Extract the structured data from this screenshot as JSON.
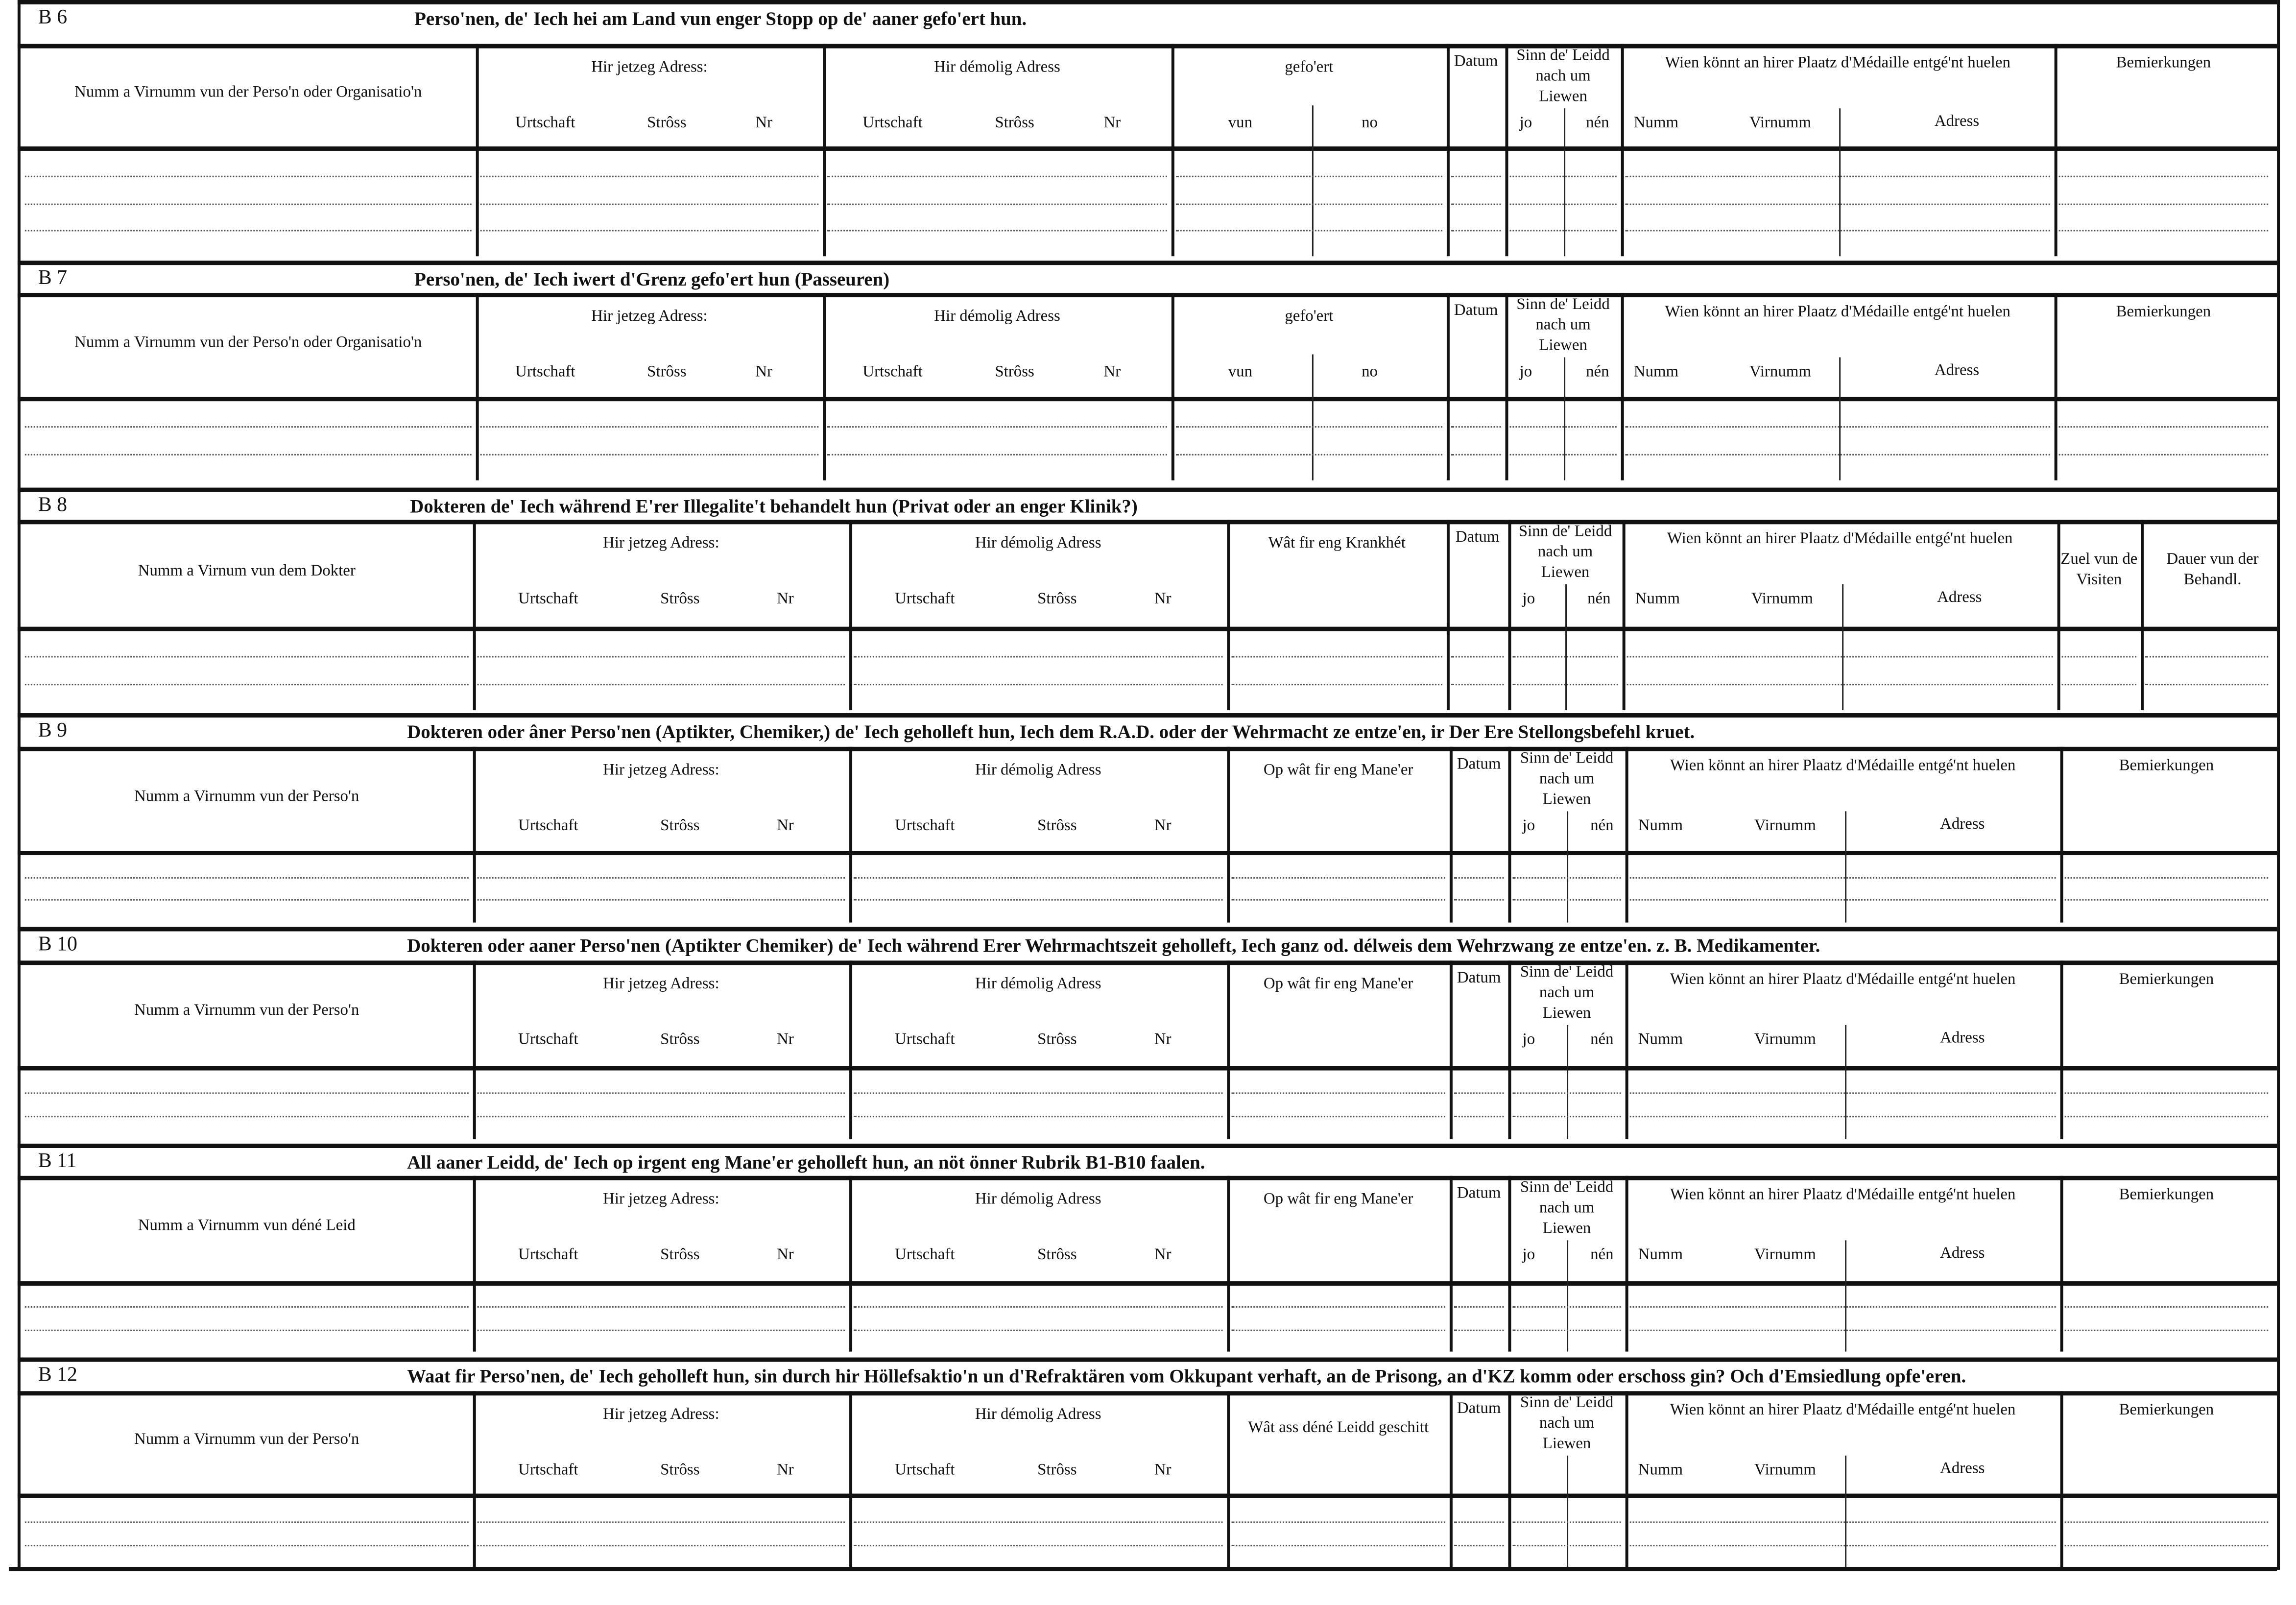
{
  "common": {
    "current_address": "Hir jetzeg Adress:",
    "old_address": "Hir démolig Adress",
    "address_subs": [
      "Urtschaft",
      "Strôss",
      "Nr"
    ],
    "datum": "Datum",
    "sinn": "Sinn de' Leidd nach um Liewen",
    "jo": "jo",
    "nen": "nén",
    "wien": "Wien könnt an hirer Plaatz d'Médaille entgé'nt huelen",
    "wien_subs": [
      "Numm",
      "Virnumm",
      "Adress"
    ],
    "remarks": "Bemierkungen"
  },
  "sections": [
    {
      "code": "B 6",
      "title": "Perso'nen, de' Iech hei am Land vun enger Stopp op de' aaner gefo'ert hun.",
      "name_header": "Numm a Virnumm vun der Perso'n oder Organisatio'n",
      "col4": {
        "label": "gefo'ert",
        "subs": [
          "vun",
          "no"
        ]
      }
    },
    {
      "code": "B 7",
      "title": "Perso'nen, de' Iech iwert d'Grenz gefo'ert hun (Passeuren)",
      "name_header": "Numm a Virnumm vun der Perso'n oder Organisatio'n",
      "col4": {
        "label": "gefo'ert",
        "subs": [
          "vun",
          "no"
        ]
      }
    },
    {
      "code": "B 8",
      "title": "Dokteren de' Iech während E'rer Illegalite't behandelt hun (Privat oder an enger Klinik?)",
      "name_header": "Numm a Virnum vun dem Dokter",
      "col4": {
        "label": "Wât fir eng Krankhét"
      },
      "extra": [
        "Zuel vun de Visiten",
        "Dauer vun der Behandl."
      ]
    },
    {
      "code": "B 9",
      "title": "Dokteren oder âner Perso'nen (Aptikter, Chemiker,) de' Iech geholleft hun, Iech dem R.A.D. oder der Wehrmacht ze entze'en, ir Der Ere Stellongsbefehl kruet.",
      "name_header": "Numm a Virnumm vun der Perso'n",
      "col4": {
        "label": "Op wât fir eng Mane'er"
      }
    },
    {
      "code": "B 10",
      "title": "Dokteren oder aaner Perso'nen (Aptikter Chemiker) de' Iech während Erer Wehrmachtszeit geholleft, Iech ganz od. délweis dem Wehrzwang ze entze'en. z. B. Medikamenter.",
      "name_header": "Numm a Virnumm vun der Perso'n",
      "col4": {
        "label": "Op wât fir eng Mane'er"
      }
    },
    {
      "code": "B 11",
      "title": "All aaner Leidd, de' Iech op irgent eng Mane'er geholleft hun, an nöt önner Rubrik B1-B10 faalen.",
      "name_header": "Numm a Virnumm vun déné Leid",
      "col4": {
        "label": "Op wât fir eng Mane'er"
      }
    },
    {
      "code": "B 12",
      "title": "Waat fir Perso'nen, de' Iech geholleft hun, sin durch hir Höllefsaktio'n un d'Refraktären vom Okkupant verhaft, an de Prisong, an d'KZ komm oder erschoss gin? Och d'Emsiedlung opfe'eren.",
      "name_header": "Numm a Virnumm vun der Perso'n",
      "col4": {
        "label": "Wât ass déné Leidd geschitt"
      },
      "no_jo_nen": true
    }
  ]
}
